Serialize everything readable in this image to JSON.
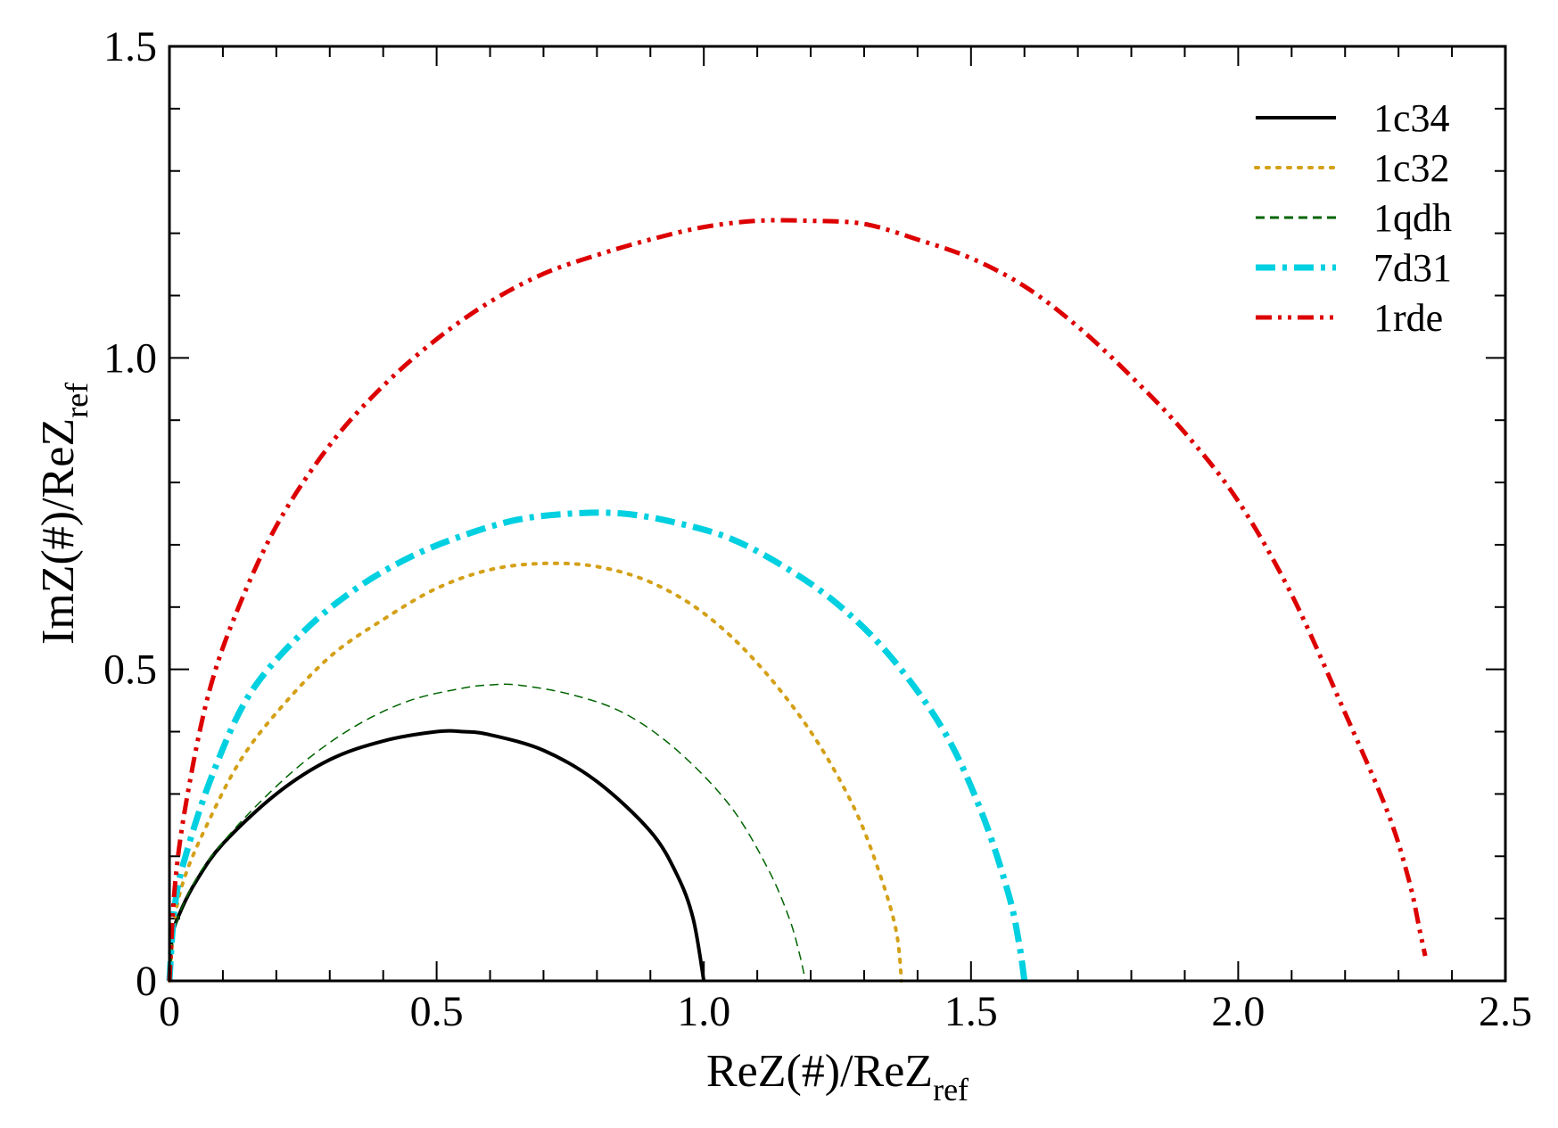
{
  "chart_data": {
    "type": "line",
    "title": "",
    "xlabel": {
      "main": "ReZ(#)/ReZ",
      "sub": "ref"
    },
    "ylabel": {
      "main": "ImZ(#)/ReZ",
      "sub": "ref"
    },
    "xlim": [
      0,
      2.5
    ],
    "ylim": [
      0,
      1.5
    ],
    "xticks": [
      0,
      0.5,
      1.0,
      1.5,
      2.0,
      2.5
    ],
    "xtick_labels": [
      "0",
      "0.5",
      "1.0",
      "1.5",
      "2.0",
      "2.5"
    ],
    "yticks": [
      0,
      0.5,
      1.0,
      1.5
    ],
    "ytick_labels": [
      "0",
      "0.5",
      "1.0",
      "1.5"
    ],
    "x_minor_step": 0.1,
    "y_minor_step": 0.1,
    "grid": false,
    "legend_position": "top-right",
    "series": [
      {
        "name": "1c34",
        "color": "#000000",
        "style": "solid",
        "x": [
          0.0,
          0.005,
          0.02,
          0.05,
          0.1,
          0.2,
          0.3,
          0.4,
          0.5,
          0.55,
          0.6,
          0.7,
          0.8,
          0.9,
          0.95,
          0.98,
          1.0
        ],
        "y": [
          0.0,
          0.07,
          0.11,
          0.16,
          0.22,
          0.3,
          0.355,
          0.385,
          0.4,
          0.4,
          0.395,
          0.37,
          0.32,
          0.24,
          0.17,
          0.1,
          0.0
        ]
      },
      {
        "name": "1c32",
        "color": "#d4a017",
        "style": "dotted",
        "x": [
          0.0,
          0.01,
          0.03,
          0.07,
          0.13,
          0.2,
          0.3,
          0.4,
          0.5,
          0.6,
          0.7,
          0.8,
          0.9,
          1.0,
          1.1,
          1.2,
          1.28,
          1.33,
          1.36,
          1.37
        ],
        "y": [
          0.0,
          0.1,
          0.17,
          0.25,
          0.35,
          0.43,
          0.52,
          0.58,
          0.63,
          0.66,
          0.67,
          0.665,
          0.64,
          0.59,
          0.51,
          0.4,
          0.28,
          0.17,
          0.08,
          0.0
        ]
      },
      {
        "name": "1qdh",
        "color": "#006400",
        "style": "dashed",
        "x": [
          0.0,
          0.01,
          0.03,
          0.07,
          0.15,
          0.25,
          0.35,
          0.45,
          0.55,
          0.6,
          0.65,
          0.75,
          0.85,
          0.95,
          1.05,
          1.12,
          1.16,
          1.18,
          1.19
        ],
        "y": [
          0.0,
          0.08,
          0.13,
          0.19,
          0.27,
          0.35,
          0.41,
          0.45,
          0.47,
          0.475,
          0.475,
          0.46,
          0.43,
          0.37,
          0.28,
          0.18,
          0.1,
          0.04,
          0.0
        ]
      },
      {
        "name": "7d31",
        "color": "#00d0e0",
        "style": "dashdot",
        "x": [
          0.0,
          0.01,
          0.03,
          0.08,
          0.15,
          0.25,
          0.35,
          0.45,
          0.55,
          0.65,
          0.75,
          0.85,
          0.95,
          1.05,
          1.15,
          1.25,
          1.35,
          1.45,
          1.52,
          1.57,
          1.59,
          1.6
        ],
        "y": [
          0.0,
          0.12,
          0.2,
          0.33,
          0.46,
          0.56,
          0.63,
          0.68,
          0.715,
          0.74,
          0.75,
          0.75,
          0.735,
          0.71,
          0.665,
          0.605,
          0.52,
          0.4,
          0.27,
          0.14,
          0.06,
          0.0
        ]
      },
      {
        "name": "1rde",
        "color": "#dd0000",
        "style": "dashdotdot",
        "x": [
          0.0,
          0.01,
          0.03,
          0.07,
          0.12,
          0.2,
          0.3,
          0.4,
          0.5,
          0.6,
          0.7,
          0.8,
          0.9,
          1.0,
          1.1,
          1.2,
          1.3,
          1.4,
          1.5,
          1.6,
          1.7,
          1.8,
          1.9,
          2.0,
          2.1,
          2.2,
          2.28,
          2.32,
          2.34,
          2.35
        ],
        "y": [
          0.0,
          0.15,
          0.28,
          0.45,
          0.58,
          0.73,
          0.86,
          0.955,
          1.03,
          1.09,
          1.135,
          1.165,
          1.19,
          1.21,
          1.22,
          1.22,
          1.215,
          1.19,
          1.16,
          1.115,
          1.05,
          0.97,
          0.88,
          0.77,
          0.62,
          0.43,
          0.27,
          0.16,
          0.08,
          0.04
        ]
      }
    ]
  }
}
